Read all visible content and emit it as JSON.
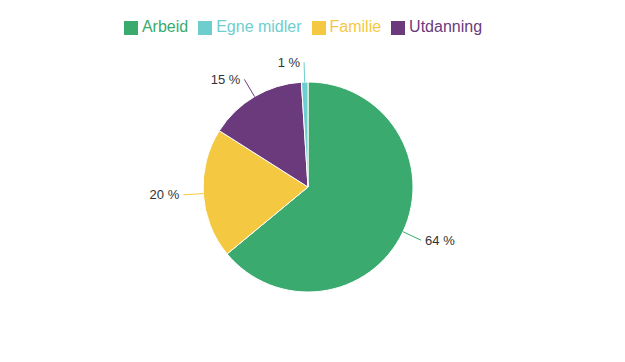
{
  "chart_data": {
    "type": "pie",
    "categories": [
      "Arbeid",
      "Familie",
      "Utdanning",
      "Egne midler"
    ],
    "values": [
      64,
      20,
      15,
      1
    ],
    "value_labels": [
      "64 %",
      "20 %",
      "15 %",
      "1 %"
    ],
    "colors": [
      "#3aaa6e",
      "#f5c842",
      "#6b3a7d",
      "#6ecece"
    ],
    "data_labels": true,
    "legend": "top"
  }
}
